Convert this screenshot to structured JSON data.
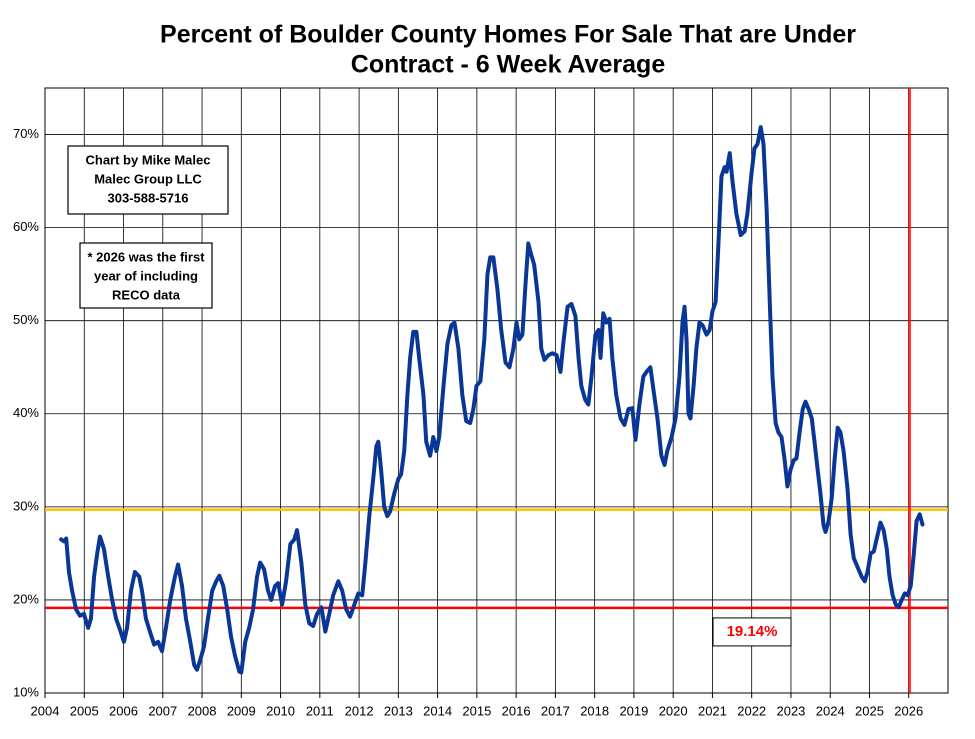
{
  "chart_data": {
    "type": "line",
    "title": [
      "Percent of Boulder County Homes For Sale That are Under",
      "Contract - 6 Week Average"
    ],
    "color": "#0a3796",
    "grid": true,
    "xlim": [
      2004,
      2027
    ],
    "xticks": [
      2004,
      2005,
      2006,
      2007,
      2008,
      2009,
      2010,
      2011,
      2012,
      2013,
      2014,
      2015,
      2016,
      2017,
      2018,
      2019,
      2020,
      2021,
      2022,
      2023,
      2024,
      2025,
      2026
    ],
    "ylim": [
      10,
      75
    ],
    "yticks": [
      {
        "value": 10,
        "label": "10%"
      },
      {
        "value": 20,
        "label": "20%"
      },
      {
        "value": 30,
        "label": "30%"
      },
      {
        "value": 40,
        "label": "40%"
      },
      {
        "value": 50,
        "label": "50%"
      },
      {
        "value": 60,
        "label": "60%"
      },
      {
        "value": 70,
        "label": "70%"
      }
    ],
    "hlines": [
      {
        "value": 29.7,
        "color": "#ffc000"
      },
      {
        "value": 19.14,
        "label": "19.14%",
        "color": "#ff0000"
      }
    ],
    "vlines": [
      {
        "value": 2026.02,
        "color": "#ff0000"
      }
    ],
    "annotations": [
      {
        "lines": [
          "Chart by Mike Malec",
          "Malec Group LLC",
          "303-588-5716"
        ]
      },
      {
        "lines": [
          "* 2026 was the first",
          "year of including",
          "RECO data"
        ]
      }
    ],
    "x": [
      2004.41,
      2004.48,
      2004.54,
      2004.61,
      2004.69,
      2004.79,
      2004.89,
      2004.99,
      2005.1,
      2005.17,
      2005.25,
      2005.33,
      2005.4,
      2005.5,
      2005.61,
      2005.71,
      2005.81,
      2005.91,
      2006.01,
      2006.09,
      2006.19,
      2006.29,
      2006.4,
      2006.47,
      2006.57,
      2006.68,
      2006.78,
      2006.88,
      2006.98,
      2007.08,
      2007.19,
      2007.31,
      2007.39,
      2007.49,
      2007.59,
      2007.7,
      2007.8,
      2007.87,
      2007.95,
      2008.05,
      2008.15,
      2008.26,
      2008.36,
      2008.44,
      2008.54,
      2008.64,
      2008.74,
      2008.84,
      2008.95,
      2009.0,
      2009.1,
      2009.2,
      2009.3,
      2009.4,
      2009.48,
      2009.58,
      2009.68,
      2009.76,
      2009.86,
      2009.94,
      2010.04,
      2010.14,
      2010.25,
      2010.35,
      2010.42,
      2010.53,
      2010.63,
      2010.73,
      2010.83,
      2010.93,
      2011.04,
      2011.14,
      2011.24,
      2011.34,
      2011.47,
      2011.57,
      2011.67,
      2011.77,
      2011.88,
      2011.98,
      2012.08,
      2012.16,
      2012.26,
      2012.36,
      2012.44,
      2012.49,
      2012.56,
      2012.64,
      2012.72,
      2012.79,
      2012.9,
      2013.0,
      2013.07,
      2013.15,
      2013.23,
      2013.3,
      2013.38,
      2013.46,
      2013.53,
      2013.64,
      2013.71,
      2013.81,
      2013.89,
      2013.97,
      2014.04,
      2014.15,
      2014.25,
      2014.35,
      2014.43,
      2014.53,
      2014.63,
      2014.73,
      2014.83,
      2014.91,
      2014.99,
      2015.09,
      2015.19,
      2015.27,
      2015.34,
      2015.42,
      2015.52,
      2015.62,
      2015.73,
      2015.83,
      2015.93,
      2016.01,
      2016.08,
      2016.16,
      2016.24,
      2016.31,
      2016.39,
      2016.46,
      2016.57,
      2016.64,
      2016.72,
      2016.82,
      2016.92,
      2017.03,
      2017.13,
      2017.2,
      2017.31,
      2017.41,
      2017.51,
      2017.59,
      2017.66,
      2017.76,
      2017.84,
      2017.92,
      2018.02,
      2018.1,
      2018.15,
      2018.22,
      2018.3,
      2018.38,
      2018.45,
      2018.55,
      2018.66,
      2018.76,
      2018.86,
      2018.96,
      2019.04,
      2019.14,
      2019.24,
      2019.32,
      2019.42,
      2019.5,
      2019.6,
      2019.7,
      2019.78,
      2019.85,
      2019.96,
      2020.06,
      2020.16,
      2020.24,
      2020.29,
      2020.34,
      2020.39,
      2020.44,
      2020.52,
      2020.59,
      2020.67,
      2020.75,
      2020.85,
      2020.93,
      2021.0,
      2021.08,
      2021.15,
      2021.23,
      2021.31,
      2021.36,
      2021.44,
      2021.51,
      2021.61,
      2021.72,
      2021.82,
      2021.89,
      2022.0,
      2022.07,
      2022.15,
      2022.23,
      2022.3,
      2022.38,
      2022.46,
      2022.53,
      2022.61,
      2022.68,
      2022.76,
      2022.84,
      2022.91,
      2022.99,
      2023.07,
      2023.14,
      2023.22,
      2023.3,
      2023.37,
      2023.45,
      2023.53,
      2023.6,
      2023.68,
      2023.75,
      2023.83,
      2023.88,
      2023.96,
      2024.04,
      2024.11,
      2024.19,
      2024.26,
      2024.34,
      2024.44,
      2024.52,
      2024.6,
      2024.7,
      2024.8,
      2024.88,
      2024.95,
      2025.03,
      2025.11,
      2025.18,
      2025.28,
      2025.36,
      2025.44,
      2025.51,
      2025.59,
      2025.67,
      2025.74,
      2025.82,
      2025.9,
      2025.97,
      2026.05,
      2026.13,
      2026.2,
      2026.28,
      2026.35
    ],
    "values": [
      26.5,
      26.3,
      26.6,
      23,
      21,
      19,
      18.3,
      18.5,
      17,
      18,
      22.5,
      25,
      26.8,
      25.5,
      22.5,
      20,
      18,
      16.8,
      15.5,
      17,
      21,
      23,
      22.5,
      21,
      18,
      16.5,
      15.2,
      15.5,
      14.5,
      17,
      20,
      22.5,
      23.8,
      21.5,
      18,
      15.5,
      13,
      12.5,
      13.5,
      15,
      18,
      21,
      22,
      22.6,
      21.5,
      19,
      16,
      14,
      12.3,
      12.2,
      15.5,
      17,
      19,
      22.5,
      24,
      23.3,
      21,
      20,
      21.5,
      21.8,
      19.5,
      22,
      26,
      26.5,
      27.5,
      24,
      19.5,
      17.5,
      17.2,
      18.5,
      19.2,
      16.6,
      18.5,
      20.5,
      22,
      21,
      19,
      18.2,
      19.5,
      20.7,
      20.5,
      24,
      29,
      33,
      36.5,
      37,
      34,
      30,
      29,
      29.5,
      31.5,
      33,
      33.5,
      36,
      42,
      46,
      48.8,
      48.8,
      46,
      42,
      37,
      35.5,
      37.5,
      36,
      37.5,
      43,
      47.5,
      49.5,
      49.8,
      47,
      42,
      39.2,
      39,
      40.5,
      43,
      43.5,
      48,
      55,
      56.8,
      56.8,
      53.5,
      49,
      45.5,
      45,
      47,
      49.8,
      48,
      48.5,
      54,
      58.3,
      57,
      56,
      52,
      47,
      45.8,
      46.3,
      46.5,
      46.3,
      44.5,
      47.5,
      51.5,
      51.8,
      50.5,
      46,
      43,
      41.5,
      41,
      44,
      48.5,
      49,
      46,
      50.8,
      49.8,
      50.2,
      46,
      42,
      39.5,
      38.8,
      40.5,
      40.6,
      37.2,
      41,
      44,
      44.5,
      45,
      42.5,
      39.5,
      35.5,
      34.5,
      36,
      37.5,
      39.5,
      44,
      50,
      51.5,
      48,
      40,
      39.5,
      43,
      47,
      49.8,
      49.5,
      48.5,
      49,
      51,
      52,
      58,
      65.5,
      66.5,
      66,
      68,
      65,
      61.5,
      59.2,
      59.6,
      61.5,
      66,
      68.5,
      69,
      70.8,
      69,
      62,
      52,
      44,
      39,
      38,
      37.5,
      35,
      32.2,
      34,
      35,
      35.2,
      38,
      40.5,
      41.3,
      40.5,
      39.5,
      37,
      34,
      31.5,
      28,
      27.3,
      28.5,
      31,
      35,
      38.5,
      38,
      36,
      32,
      27,
      24.5,
      23.5,
      22.5,
      22,
      23,
      25,
      25.2,
      26.5,
      28.3,
      27.5,
      25.5,
      22.5,
      20.5,
      19.5,
      19.2,
      20,
      20.7,
      20.5,
      21.5,
      25,
      28.5,
      29.2,
      28.1
    ]
  }
}
